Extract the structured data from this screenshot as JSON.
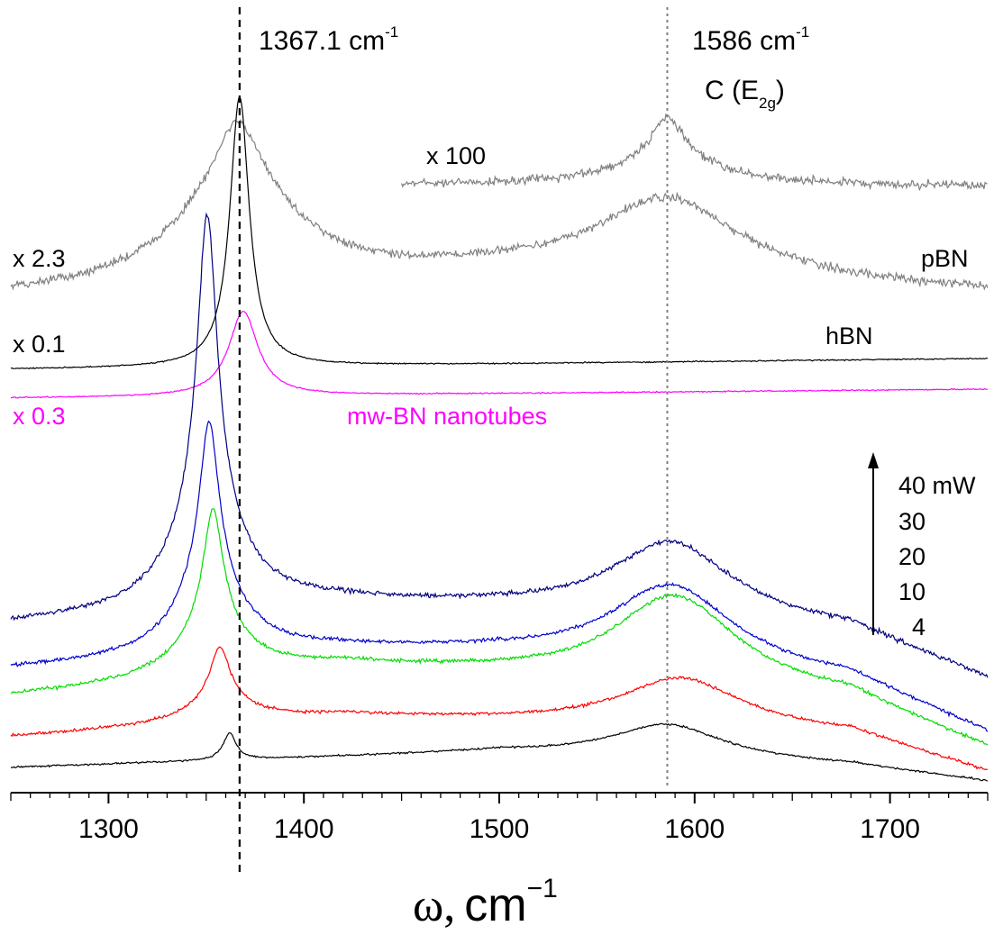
{
  "chart_data": {
    "type": "line",
    "title": "",
    "xlabel_symbol": "ω,",
    "xlabel_unit": "cm",
    "xlabel_exponent": "−1",
    "xlim": [
      1250,
      1750
    ],
    "xticks": [
      1300,
      1400,
      1500,
      1600,
      1700
    ],
    "y_axis_shown": false,
    "grid": false,
    "reference_lines": [
      {
        "x": 1367.1,
        "style": "dashed",
        "color": "#000000"
      },
      {
        "x": 1586,
        "style": "dotted",
        "color": "#808080"
      }
    ],
    "annotations": {
      "peak1_value": "1367.1 cm",
      "peak1_exp": "-1",
      "peak2_value": "1586 cm",
      "peak2_exp": "-1",
      "mode_main": "C (E",
      "mode_sub": "2g",
      "mode_close": ")",
      "x100": "x 100",
      "x2_3": "x 2.3",
      "x0_1": "x 0.1",
      "x0_3": "x 0.3",
      "pBN": "pBN",
      "hBN": "hBN",
      "nanotubes": "mw-BN nanotubes",
      "power_labels": [
        "40 mW",
        "30",
        "20",
        "10",
        "4"
      ]
    },
    "series": [
      {
        "color": "#808080",
        "x_range": [
          1450,
          1750
        ],
        "noise": 7,
        "peaks": [
          {
            "x": 1586,
            "y": 40,
            "w": 9
          },
          {
            "x": 1586,
            "y": 35,
            "w": 30
          }
        ],
        "baseline": [
          [
            1450,
            205
          ],
          [
            1750,
            207
          ]
        ]
      },
      {
        "color": "#808080",
        "x_range": [
          1250,
          1750
        ],
        "noise": 7,
        "peaks": [
          {
            "x": 1366,
            "y": 55,
            "w": 12
          },
          {
            "x": 1366,
            "y": 125,
            "w": 35
          },
          {
            "x": 1586,
            "y": 90,
            "w": 45
          }
        ],
        "baseline": [
          [
            1250,
            330
          ],
          [
            1500,
            305
          ],
          [
            1750,
            325
          ]
        ]
      },
      {
        "color": "#000000",
        "x_range": [
          1250,
          1750
        ],
        "noise": 1,
        "peaks": [
          {
            "x": 1367.1,
            "y": 300,
            "w": 6
          }
        ],
        "baseline": [
          [
            1250,
            410
          ],
          [
            1750,
            398
          ]
        ]
      },
      {
        "color": "#ff00ff",
        "x_range": [
          1250,
          1750
        ],
        "noise": 1,
        "peaks": [
          {
            "x": 1369,
            "y": 94,
            "w": 9
          }
        ],
        "baseline": [
          [
            1250,
            442
          ],
          [
            1750,
            432
          ]
        ]
      },
      {
        "color": "#000080",
        "x_range": [
          1250,
          1750
        ],
        "noise": 4,
        "peaks": [
          {
            "x": 1350.5,
            "y": 320,
            "w": 6
          },
          {
            "x": 1350.5,
            "y": 120,
            "w": 20
          },
          {
            "x": 1588,
            "y": 85,
            "w": 38
          }
        ],
        "baseline": [
          [
            1250,
            693
          ],
          [
            1420,
            670
          ],
          [
            1500,
            675
          ],
          [
            1680,
            700
          ],
          [
            1750,
            755
          ]
        ]
      },
      {
        "color": "#0000cc",
        "x_range": [
          1250,
          1750
        ],
        "noise": 3,
        "peaks": [
          {
            "x": 1351.5,
            "y": 175,
            "w": 6
          },
          {
            "x": 1351.5,
            "y": 85,
            "w": 20
          },
          {
            "x": 1588,
            "y": 90,
            "w": 38
          }
        ],
        "baseline": [
          [
            1250,
            743
          ],
          [
            1420,
            722
          ],
          [
            1500,
            725
          ],
          [
            1680,
            755
          ],
          [
            1750,
            815
          ]
        ]
      },
      {
        "color": "#00dd00",
        "x_range": [
          1250,
          1750
        ],
        "noise": 3,
        "peaks": [
          {
            "x": 1353.5,
            "y": 125,
            "w": 6
          },
          {
            "x": 1353.5,
            "y": 60,
            "w": 20
          },
          {
            "x": 1590,
            "y": 100,
            "w": 38
          }
        ],
        "baseline": [
          [
            1250,
            773
          ],
          [
            1420,
            740
          ],
          [
            1500,
            748
          ],
          [
            1680,
            775
          ],
          [
            1750,
            832
          ]
        ]
      },
      {
        "color": "#ff0000",
        "x_range": [
          1250,
          1750
        ],
        "noise": 2.5,
        "peaks": [
          {
            "x": 1357,
            "y": 58,
            "w": 6
          },
          {
            "x": 1357,
            "y": 26,
            "w": 20
          },
          {
            "x": 1593,
            "y": 55,
            "w": 38
          }
        ],
        "baseline": [
          [
            1250,
            818
          ],
          [
            1420,
            795
          ],
          [
            1500,
            800
          ],
          [
            1680,
            815
          ],
          [
            1750,
            858
          ]
        ]
      },
      {
        "color": "#000000",
        "x_range": [
          1250,
          1750
        ],
        "noise": 1.5,
        "peaks": [
          {
            "x": 1362,
            "y": 30,
            "w": 4
          },
          {
            "x": 1586,
            "y": 38,
            "w": 35
          }
        ],
        "baseline": [
          [
            1250,
            852
          ],
          [
            1500,
            835
          ],
          [
            1680,
            850
          ],
          [
            1750,
            868
          ]
        ]
      }
    ]
  }
}
